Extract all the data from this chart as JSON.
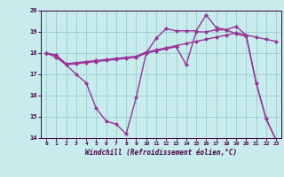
{
  "xlabel": "Windchill (Refroidissement éolien,°C)",
  "xlim": [
    -0.5,
    23.5
  ],
  "ylim": [
    14,
    20
  ],
  "yticks": [
    14,
    15,
    16,
    17,
    18,
    19,
    20
  ],
  "xticks": [
    0,
    1,
    2,
    3,
    4,
    5,
    6,
    7,
    8,
    9,
    10,
    11,
    12,
    13,
    14,
    15,
    16,
    17,
    18,
    19,
    20,
    21,
    22,
    23
  ],
  "bg_color": "#c8ecec",
  "grid_color": "#99cccc",
  "line_color": "#993399",
  "line1_y": [
    18.0,
    17.8,
    17.45,
    17.5,
    17.55,
    17.6,
    17.65,
    17.7,
    17.75,
    17.8,
    18.0,
    18.1,
    18.2,
    18.3,
    17.45,
    19.0,
    19.0,
    19.1,
    19.1,
    18.9,
    18.8,
    16.6,
    14.9,
    13.9
  ],
  "line2_y": [
    18.0,
    17.9,
    17.5,
    17.55,
    17.6,
    17.65,
    17.7,
    17.75,
    17.8,
    17.85,
    18.05,
    18.15,
    18.25,
    18.35,
    18.45,
    18.55,
    18.65,
    18.75,
    18.85,
    18.95,
    18.85,
    18.75,
    18.65,
    18.55
  ],
  "line3_y": [
    18.0,
    17.9,
    17.45,
    17.0,
    16.6,
    15.4,
    14.8,
    14.65,
    14.2,
    15.9,
    18.0,
    18.7,
    19.15,
    19.05,
    19.05,
    19.05,
    19.8,
    19.2,
    19.1,
    19.25,
    18.85,
    16.6,
    14.9,
    13.9
  ],
  "markersize": 2.5,
  "linewidth": 1.0
}
